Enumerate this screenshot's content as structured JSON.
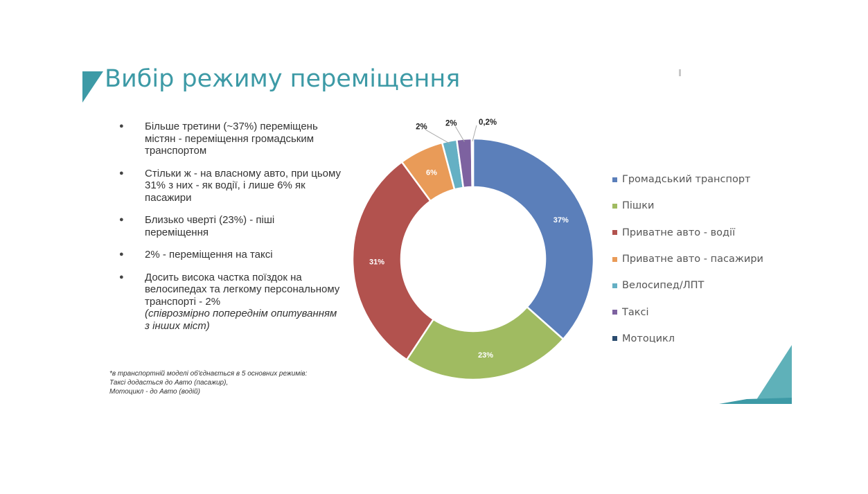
{
  "slide": {
    "title": "Вибір режиму переміщення",
    "accent_color": "#3d9aa6",
    "bullets": [
      {
        "text": "Більше третини (~37%) переміщень містян - переміщення громадським транспортом"
      },
      {
        "text": "Стільки ж - на власному авто, при цьому 31% з них - як водії, і лише 6% як пасажири"
      },
      {
        "text": "Близько чверті (23%) - піші переміщення"
      },
      {
        "text": "2% - переміщення на таксі"
      },
      {
        "text": "Досить висока частка поїздок на велосипедах та легкому персональному транспорті - 2%",
        "note": "(співрозмірно попереднім опитуванням з інших міст)"
      }
    ],
    "footnote": [
      "*в транспортній моделі об'єднається в 5 основних режимів:",
      "Таксі додасться до Авто (пасажир),",
      "Мотоцикл - до Авто (водій)"
    ]
  },
  "chart_data": {
    "type": "pie",
    "donut": true,
    "legend_position": "right",
    "slices": [
      {
        "label": "Громадський транспорт",
        "value": 37,
        "display": "37%",
        "color": "#5b7fba"
      },
      {
        "label": "Пішки",
        "value": 23,
        "display": "23%",
        "color": "#a0bb61"
      },
      {
        "label": "Приватне авто - водії",
        "value": 31,
        "display": "31%",
        "color": "#b2524e"
      },
      {
        "label": "Приватне авто - пасажири",
        "value": 6,
        "display": "6%",
        "color": "#e99b58"
      },
      {
        "label": "Велосипед/ЛПТ",
        "value": 2,
        "display": "2%",
        "color": "#65b0c4"
      },
      {
        "label": "Таксі",
        "value": 2,
        "display": "2%",
        "color": "#7d62a0"
      },
      {
        "label": "Мотоцикл",
        "value": 0.2,
        "display": "0,2%",
        "color": "#2b4c6f"
      }
    ]
  }
}
